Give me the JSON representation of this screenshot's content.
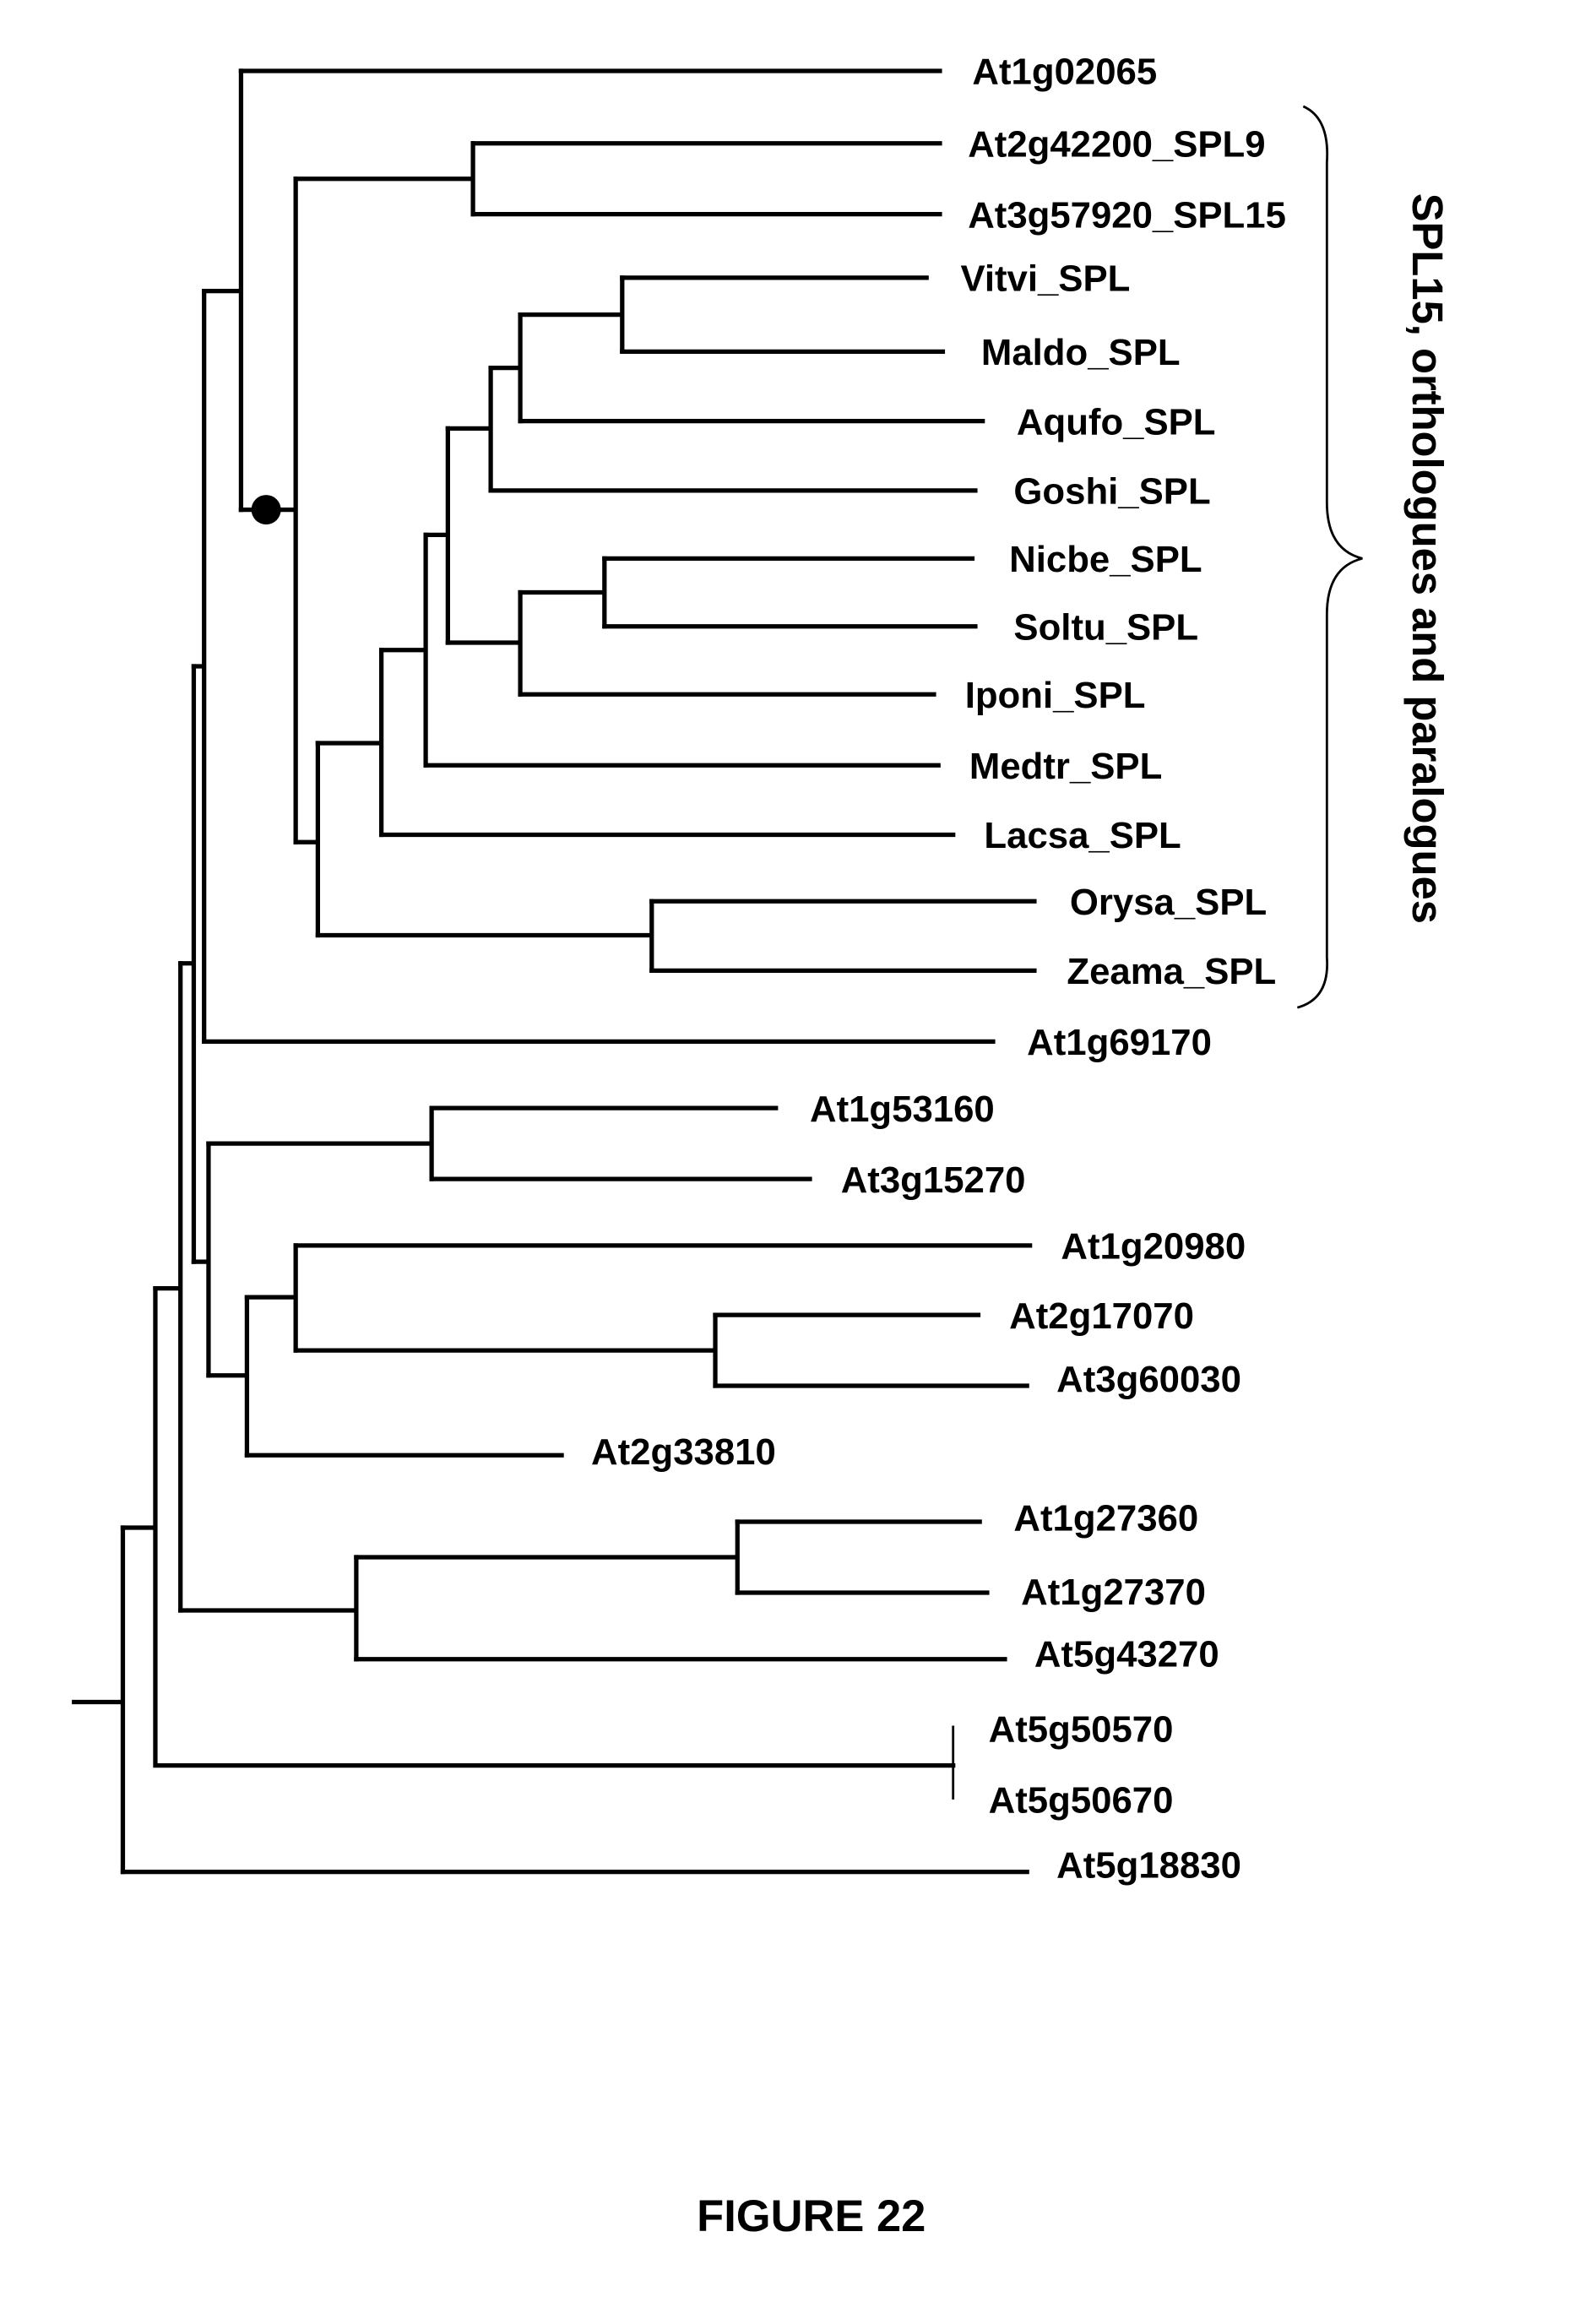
{
  "figure_title": "FIGURE 22",
  "clade_label": "SPL15, orthologues and paralogues",
  "leaves": [
    "At1g02065",
    "At2g42200_SPL9",
    "At3g57920_SPL15",
    "Vitvi_SPL",
    "Maldo_SPL",
    "Aqufo_SPL",
    "Goshi_SPL",
    "Nicbe_SPL",
    "Soltu_SPL",
    "Iponi_SPL",
    "Medtr_SPL",
    "Lacsa_SPL",
    "Orysa_SPL",
    "Zeama_SPL",
    "At1g69170",
    "At1g53160",
    "At3g15270",
    "At1g20980",
    "At2g17070",
    "At3g60030",
    "At2g33810",
    "At1g27360",
    "At1g27370",
    "At5g43270",
    "At5g50570",
    "At5g50670",
    "At5g18830"
  ]
}
